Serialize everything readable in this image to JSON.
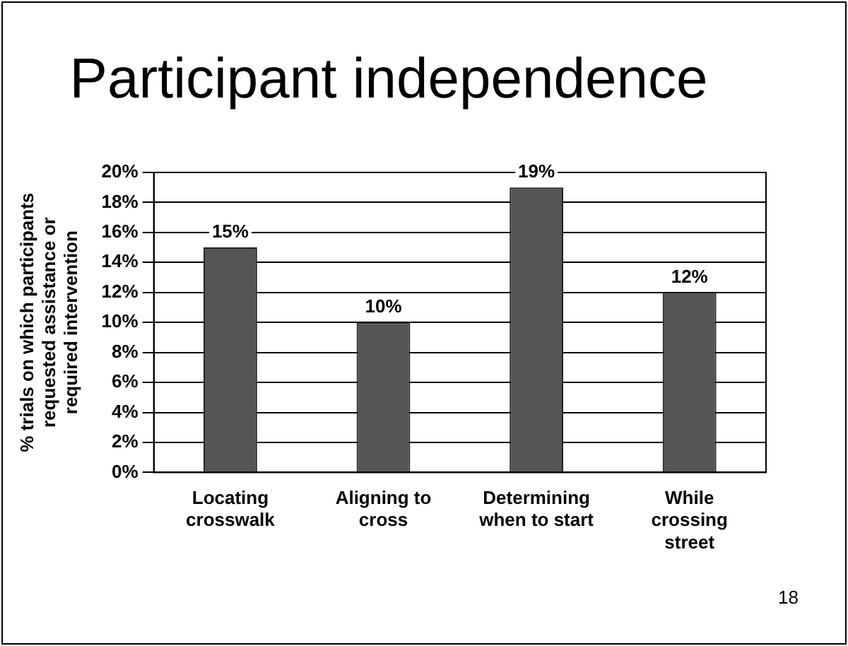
{
  "chart_data": {
    "type": "bar",
    "title": "Participant independence",
    "ylabel": "% trials on which participants requested assistance or required intervention",
    "categories": [
      "Locating crosswalk",
      "Aligning to cross",
      "Determining when to start",
      "While crossing street"
    ],
    "values": [
      15,
      10,
      19,
      12
    ],
    "value_labels": [
      "15%",
      "10%",
      "19%",
      "12%"
    ],
    "color": "#555555",
    "ylim": [
      0,
      20
    ],
    "yticks": [
      {
        "value": 0,
        "label": "0%"
      },
      {
        "value": 2,
        "label": "2%"
      },
      {
        "value": 4,
        "label": "4%"
      },
      {
        "value": 6,
        "label": "6%"
      },
      {
        "value": 8,
        "label": "8%"
      },
      {
        "value": 10,
        "label": "10%"
      },
      {
        "value": 12,
        "label": "12%"
      },
      {
        "value": 14,
        "label": "14%"
      },
      {
        "value": 16,
        "label": "16%"
      },
      {
        "value": 18,
        "label": "18%"
      },
      {
        "value": 20,
        "label": "20%"
      }
    ],
    "grid": "y",
    "legend": false,
    "annotations": [
      "18"
    ]
  }
}
